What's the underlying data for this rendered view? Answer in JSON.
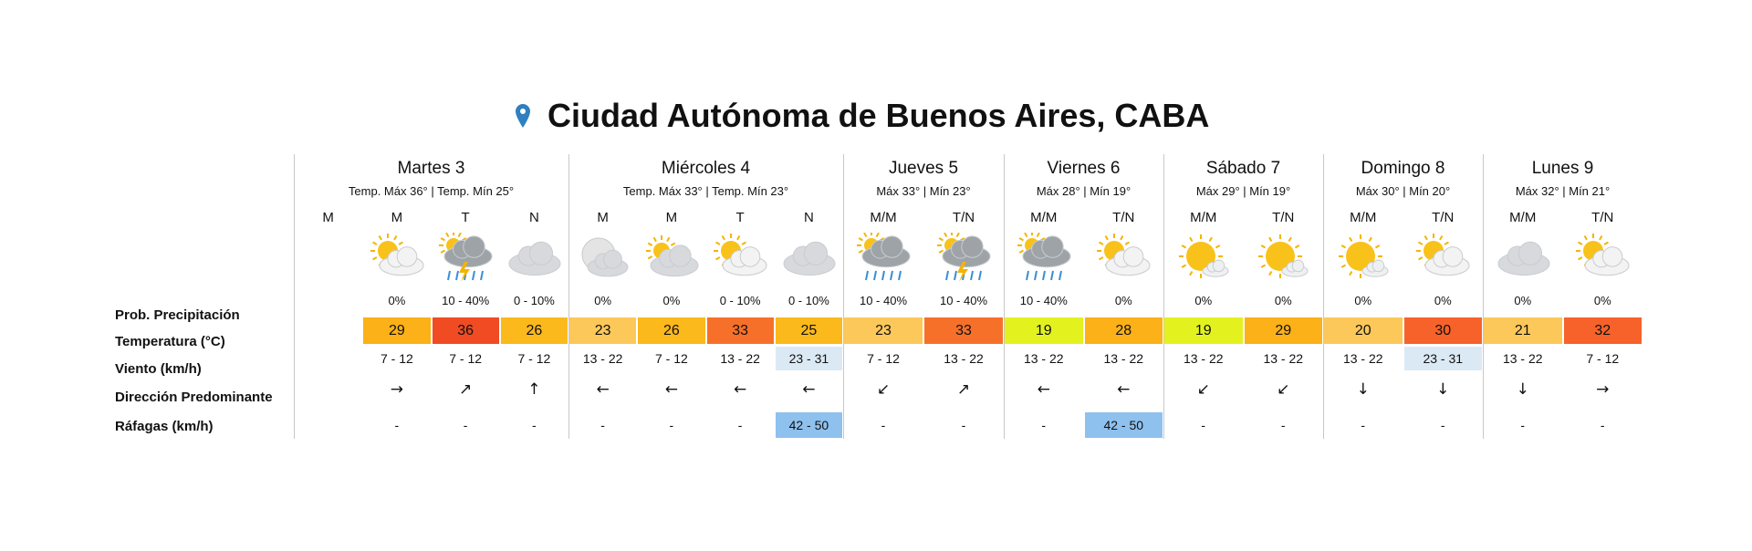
{
  "title": "Ciudad Autónoma de Buenos Aires, CABA",
  "row_labels": [
    "Prob. Precipitación",
    "Temperatura (°C)",
    "Viento (km/h)",
    "Dirección Predominante",
    "Ráfagas (km/h)"
  ],
  "days": [
    {
      "name": "Martes 3",
      "summary": "Temp. Máx 36° | Temp. Mín 25°",
      "periods": [
        {
          "label": "M"
        },
        {
          "label": "M",
          "precip": "0%",
          "temp": 29,
          "temp_color": "#fbb117",
          "wind": "7 - 12",
          "direction": "→",
          "gust": "-"
        },
        {
          "label": "T",
          "precip": "10 - 40%",
          "temp": 36,
          "temp_color": "#f04b23",
          "wind": "7 - 12",
          "direction": "↗",
          "gust": "-"
        },
        {
          "label": "N",
          "precip": "0 - 10%",
          "temp": 26,
          "temp_color": "#fbb91b",
          "wind": "7 - 12",
          "direction": "↑",
          "gust": "-"
        }
      ]
    },
    {
      "name": "Miércoles 4",
      "summary": "Temp. Máx 33° | Temp. Mín 23°",
      "periods": [
        {
          "label": "M",
          "precip": "0%",
          "temp": 23,
          "temp_color": "#fcc85a",
          "wind": "13 - 22",
          "direction": "←",
          "gust": "-"
        },
        {
          "label": "M",
          "precip": "0%",
          "temp": 26,
          "temp_color": "#fbb91b",
          "wind": "7 - 12",
          "direction": "←",
          "gust": "-"
        },
        {
          "label": "T",
          "precip": "0 - 10%",
          "temp": 33,
          "temp_color": "#f7702a",
          "wind": "13 - 22",
          "direction": "←",
          "gust": "-"
        },
        {
          "label": "N",
          "precip": "0 - 10%",
          "temp": 25,
          "temp_color": "#fbb91b",
          "wind": "23 - 31",
          "wind_color": "#dbe9f5",
          "direction": "←",
          "gust": "42 - 50",
          "gust_color": "#8fc1ef"
        }
      ]
    },
    {
      "name": "Jueves 5",
      "summary": "Máx 33° | Mín 23°",
      "periods": [
        {
          "label": "M/M",
          "precip": "10 - 40%",
          "temp": 23,
          "temp_color": "#fcc85a",
          "wind": "7 - 12",
          "direction": "↙",
          "gust": "-"
        },
        {
          "label": "T/N",
          "precip": "10 - 40%",
          "temp": 33,
          "temp_color": "#f7702a",
          "wind": "13 - 22",
          "direction": "↗",
          "gust": "-"
        }
      ]
    },
    {
      "name": "Viernes 6",
      "summary": "Máx 28° | Mín 19°",
      "periods": [
        {
          "label": "M/M",
          "precip": "10 - 40%",
          "temp": 19,
          "temp_color": "#e3f21f",
          "wind": "13 - 22",
          "direction": "←",
          "gust": "-"
        },
        {
          "label": "T/N",
          "precip": "0%",
          "temp": 28,
          "temp_color": "#fbb117",
          "wind": "13 - 22",
          "direction": "←",
          "gust": "42 - 50",
          "gust_color": "#8fc1ef"
        }
      ]
    },
    {
      "name": "Sábado 7",
      "summary": "Máx 29° | Mín 19°",
      "periods": [
        {
          "label": "M/M",
          "precip": "0%",
          "temp": 19,
          "temp_color": "#e3f21f",
          "wind": "13 - 22",
          "direction": "↙",
          "gust": "-"
        },
        {
          "label": "T/N",
          "precip": "0%",
          "temp": 29,
          "temp_color": "#fbb117",
          "wind": "13 - 22",
          "direction": "↙",
          "gust": "-"
        }
      ]
    },
    {
      "name": "Domingo 8",
      "summary": "Máx 30° | Mín 20°",
      "periods": [
        {
          "label": "M/M",
          "precip": "0%",
          "temp": 20,
          "temp_color": "#fcc85a",
          "wind": "13 - 22",
          "direction": "↓",
          "gust": "-"
        },
        {
          "label": "T/N",
          "precip": "0%",
          "temp": 30,
          "temp_color": "#f7622a",
          "wind": "23 - 31",
          "wind_color": "#dbe9f5",
          "direction": "↓",
          "gust": "-"
        }
      ]
    },
    {
      "name": "Lunes 9",
      "summary": "Máx 32° | Mín 21°",
      "periods": [
        {
          "label": "M/M",
          "precip": "0%",
          "temp": 21,
          "temp_color": "#fcc85a",
          "wind": "13 - 22",
          "direction": "↓",
          "gust": "-"
        },
        {
          "label": "T/N",
          "precip": "0%",
          "temp": 32,
          "temp_color": "#f7622a",
          "wind": "7 - 12",
          "direction": "→",
          "gust": "-"
        }
      ]
    }
  ]
}
